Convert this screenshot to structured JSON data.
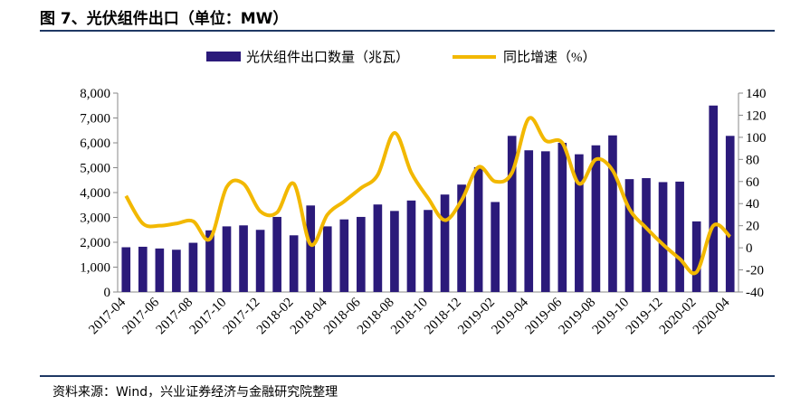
{
  "header": {
    "title": "图 7、光伏组件出口（单位：MW）"
  },
  "footer": {
    "source": "资料来源：Wind，兴业证券经济与金融研究院整理"
  },
  "colors": {
    "bar": "#2b1a7a",
    "line": "#f2b800",
    "rule": "#1f3864"
  },
  "chart_data": {
    "type": "bar+line",
    "legend_position": "top-center",
    "grid": false,
    "categories": [
      "2017-04",
      "2017-05",
      "2017-06",
      "2017-07",
      "2017-08",
      "2017-09",
      "2017-10",
      "2017-11",
      "2017-12",
      "2018-01",
      "2018-02",
      "2018-03",
      "2018-04",
      "2018-05",
      "2018-06",
      "2018-07",
      "2018-08",
      "2018-09",
      "2018-10",
      "2018-11",
      "2018-12",
      "2019-01",
      "2019-02",
      "2019-03",
      "2019-04",
      "2019-05",
      "2019-06",
      "2019-07",
      "2019-08",
      "2019-09",
      "2019-10",
      "2019-11",
      "2019-12",
      "2020-01",
      "2020-02",
      "2020-03",
      "2020-04"
    ],
    "x_tick_labels": [
      "2017-04",
      "2017-06",
      "2017-08",
      "2017-10",
      "2017-12",
      "2018-02",
      "2018-04",
      "2018-06",
      "2018-08",
      "2018-10",
      "2018-12",
      "2019-02",
      "2019-04",
      "2019-06",
      "2019-08",
      "2019-10",
      "2019-12",
      "2020-02",
      "2020-04"
    ],
    "series": [
      {
        "name": "光伏组件出口数量（兆瓦）",
        "type": "bar",
        "axis": "left",
        "values": [
          1800,
          1820,
          1750,
          1700,
          1980,
          2480,
          2640,
          2680,
          2500,
          3020,
          2280,
          3480,
          2640,
          2920,
          3020,
          3520,
          3260,
          3680,
          3300,
          3920,
          4320,
          5020,
          3620,
          6280,
          5700,
          5660,
          6000,
          5540,
          5900,
          6300,
          4540,
          4580,
          4420,
          4440,
          2840,
          7500,
          6280
        ]
      },
      {
        "name": "同比增速（%）",
        "type": "line",
        "axis": "right",
        "values": [
          47,
          22,
          20,
          22,
          24,
          8,
          55,
          58,
          33,
          32,
          58,
          3,
          30,
          42,
          54,
          66,
          104,
          68,
          45,
          25,
          43,
          73,
          60,
          68,
          117,
          97,
          95,
          58,
          80,
          70,
          35,
          18,
          3,
          -10,
          -22,
          20,
          10
        ]
      }
    ],
    "y_left": {
      "min": 0,
      "max": 8000,
      "step": 1000,
      "ticks": [
        "0",
        "1,000",
        "2,000",
        "3,000",
        "4,000",
        "5,000",
        "6,000",
        "7,000",
        "8,000"
      ]
    },
    "y_right": {
      "min": -40,
      "max": 140,
      "step": 20,
      "ticks": [
        "-40",
        "-20",
        "0",
        "20",
        "40",
        "60",
        "80",
        "100",
        "120",
        "140"
      ]
    }
  }
}
